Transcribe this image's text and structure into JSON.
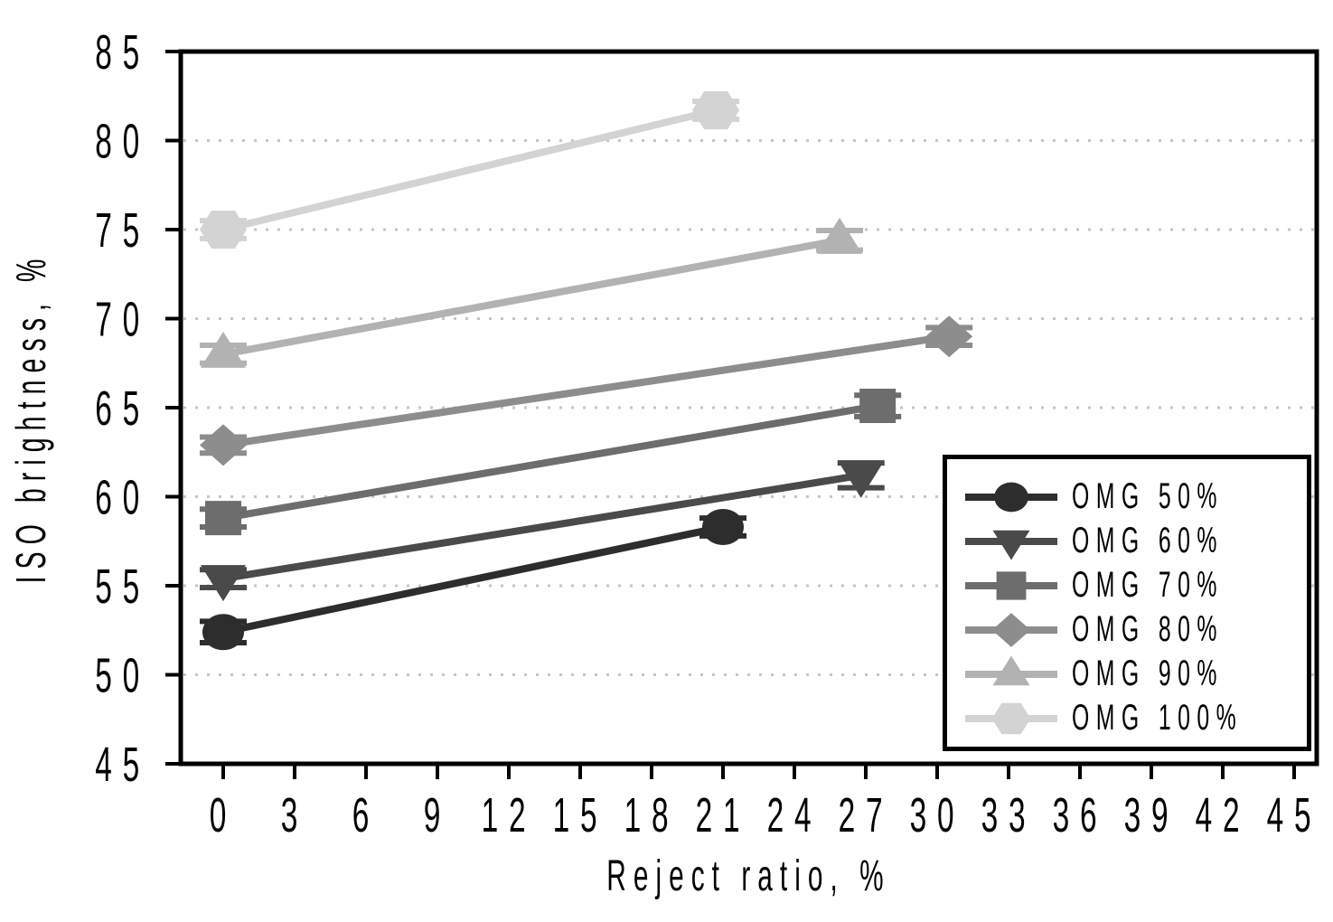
{
  "chart_data": {
    "type": "line",
    "title": "",
    "xlabel": "Reject ratio, %",
    "ylabel": "ISO brightness, %",
    "xlim": [
      -1.8,
      46
    ],
    "ylim": [
      45,
      85
    ],
    "x_ticks": [
      0,
      3,
      6,
      9,
      12,
      15,
      18,
      21,
      24,
      27,
      30,
      33,
      36,
      39,
      42,
      45
    ],
    "y_ticks": [
      85,
      80,
      75,
      70,
      65,
      60,
      55,
      50,
      45
    ],
    "grid": {
      "horizontal": true,
      "style": "dotted",
      "at": [
        80,
        75,
        70,
        65,
        60,
        55,
        50
      ],
      "color": "#c6c6c6"
    },
    "legend_position": "inside-lower-right",
    "series": [
      {
        "name": "OMG 50%",
        "marker": "circle",
        "color": "#2d2d2d",
        "points": [
          {
            "x": 0,
            "y": 52.4,
            "yerr": 0.6
          },
          {
            "x": 21.0,
            "y": 58.3,
            "yerr": 0.5
          }
        ]
      },
      {
        "name": "OMG 60%",
        "marker": "triangle-down",
        "color": "#4a4a4a",
        "points": [
          {
            "x": 0,
            "y": 55.4,
            "yerr": 0.5
          },
          {
            "x": 26.8,
            "y": 61.2,
            "yerr": 0.7
          }
        ]
      },
      {
        "name": "OMG 70%",
        "marker": "square",
        "color": "#6d6d6d",
        "points": [
          {
            "x": 0,
            "y": 58.8,
            "yerr": 0.5
          },
          {
            "x": 27.5,
            "y": 65.1,
            "yerr": 0.6
          }
        ]
      },
      {
        "name": "OMG 80%",
        "marker": "diamond",
        "color": "#8d8d8d",
        "points": [
          {
            "x": 0,
            "y": 62.9,
            "yerr": 0.45
          },
          {
            "x": 30.5,
            "y": 69.0,
            "yerr": 0.5
          }
        ]
      },
      {
        "name": "OMG 90%",
        "marker": "triangle-up",
        "color": "#b2b2b2",
        "points": [
          {
            "x": 0,
            "y": 68.0,
            "yerr": 0.5
          },
          {
            "x": 25.9,
            "y": 74.4,
            "yerr": 0.55
          }
        ]
      },
      {
        "name": "OMG 100%",
        "marker": "hexagon",
        "color": "#d3d3d3",
        "points": [
          {
            "x": 0,
            "y": 75.0,
            "yerr": 0.5
          },
          {
            "x": 20.7,
            "y": 81.7,
            "yerr": 0.5
          }
        ]
      }
    ]
  }
}
